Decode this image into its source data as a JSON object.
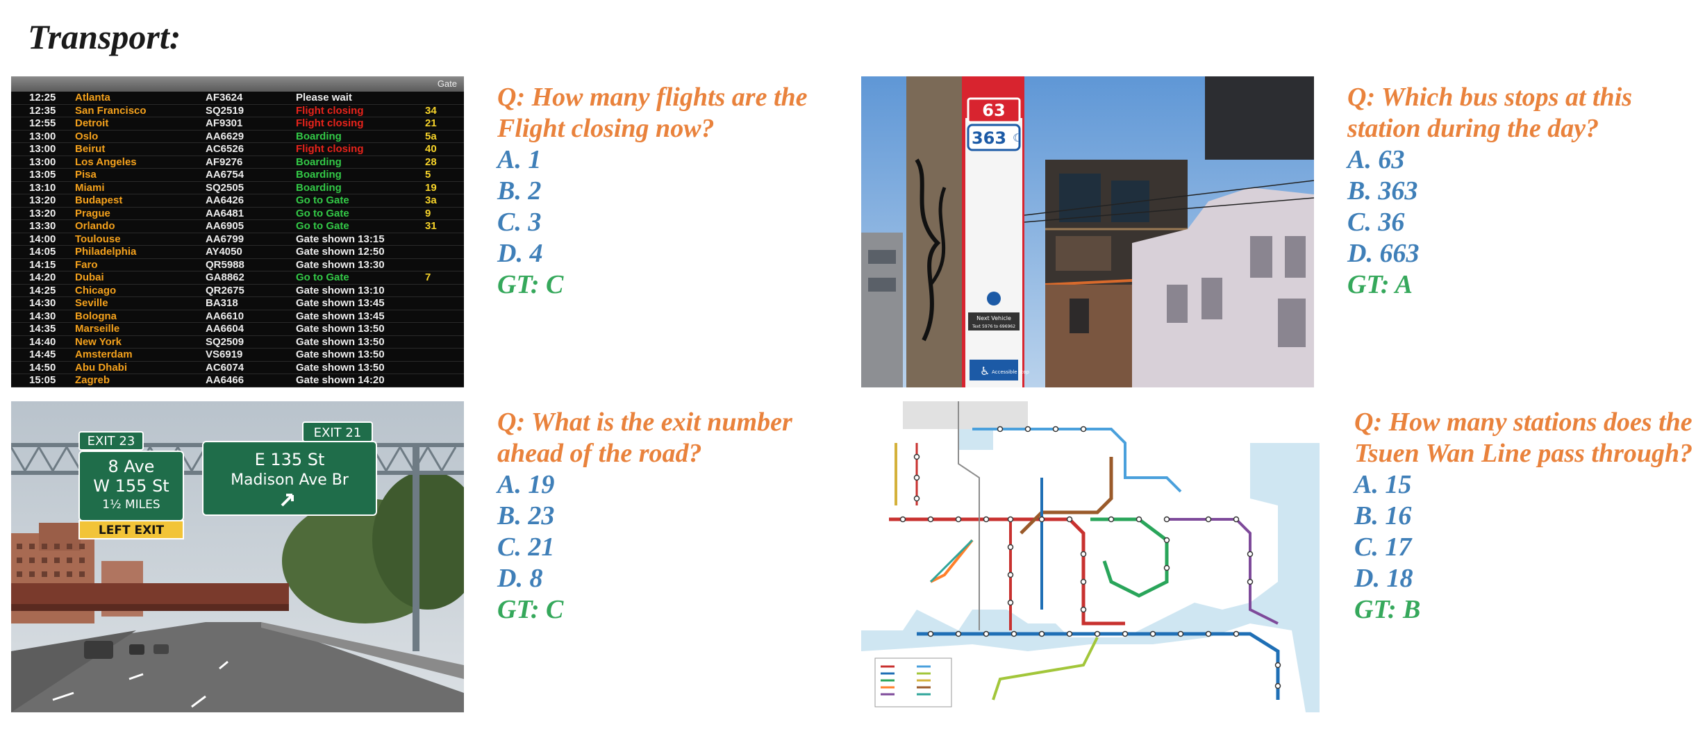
{
  "title": "Transport:",
  "panels": [
    {
      "question_line1": "Q: How many flights are the",
      "question_line2": "Flight closing now?",
      "options": [
        "A. 1",
        "B. 2",
        "C. 3",
        "D. 4"
      ],
      "gt": "GT: C",
      "image": {
        "header_gate": "Gate",
        "rows": [
          {
            "time": "12:25",
            "city": "Atlanta",
            "flight": "AF3624",
            "status": "Please wait",
            "gate": "",
            "status_color": "white"
          },
          {
            "time": "12:35",
            "city": "San Francisco",
            "flight": "SQ2519",
            "status": "Flight closing",
            "gate": "34",
            "status_color": "red"
          },
          {
            "time": "12:55",
            "city": "Detroit",
            "flight": "AF9301",
            "status": "Flight closing",
            "gate": "21",
            "status_color": "red"
          },
          {
            "time": "13:00",
            "city": "Oslo",
            "flight": "AA6629",
            "status": "Boarding",
            "gate": "5a",
            "status_color": "green"
          },
          {
            "time": "13:00",
            "city": "Beirut",
            "flight": "AC6526",
            "status": "Flight closing",
            "gate": "40",
            "status_color": "red"
          },
          {
            "time": "13:00",
            "city": "Los Angeles",
            "flight": "AF9276",
            "status": "Boarding",
            "gate": "28",
            "status_color": "green"
          },
          {
            "time": "13:05",
            "city": "Pisa",
            "flight": "AA6754",
            "status": "Boarding",
            "gate": "5",
            "status_color": "green"
          },
          {
            "time": "13:10",
            "city": "Miami",
            "flight": "SQ2505",
            "status": "Boarding",
            "gate": "19",
            "status_color": "green"
          },
          {
            "time": "13:20",
            "city": "Budapest",
            "flight": "AA6426",
            "status": "Go to Gate",
            "gate": "3a",
            "status_color": "green"
          },
          {
            "time": "13:20",
            "city": "Prague",
            "flight": "AA6481",
            "status": "Go to Gate",
            "gate": "9",
            "status_color": "green"
          },
          {
            "time": "13:30",
            "city": "Orlando",
            "flight": "AA6905",
            "status": "Go to Gate",
            "gate": "31",
            "status_color": "green"
          },
          {
            "time": "14:00",
            "city": "Toulouse",
            "flight": "AA6799",
            "status": "Gate shown 13:15",
            "gate": "",
            "status_color": "white"
          },
          {
            "time": "14:05",
            "city": "Philadelphia",
            "flight": "AY4050",
            "status": "Gate shown 12:50",
            "gate": "",
            "status_color": "white"
          },
          {
            "time": "14:15",
            "city": "Faro",
            "flight": "QR5988",
            "status": "Gate shown 13:30",
            "gate": "",
            "status_color": "white"
          },
          {
            "time": "14:20",
            "city": "Dubai",
            "flight": "GA8862",
            "status": "Go to Gate",
            "gate": "7",
            "status_color": "green"
          },
          {
            "time": "14:25",
            "city": "Chicago",
            "flight": "QR2675",
            "status": "Gate shown 13:10",
            "gate": "",
            "status_color": "white"
          },
          {
            "time": "14:30",
            "city": "Seville",
            "flight": "BA318",
            "status": "Gate shown 13:45",
            "gate": "",
            "status_color": "white"
          },
          {
            "time": "14:30",
            "city": "Bologna",
            "flight": "AA6610",
            "status": "Gate shown 13:45",
            "gate": "",
            "status_color": "white"
          },
          {
            "time": "14:35",
            "city": "Marseille",
            "flight": "AA6604",
            "status": "Gate shown 13:50",
            "gate": "",
            "status_color": "white"
          },
          {
            "time": "14:40",
            "city": "New York",
            "flight": "SQ2509",
            "status": "Gate shown 13:50",
            "gate": "",
            "status_color": "white"
          },
          {
            "time": "14:45",
            "city": "Amsterdam",
            "flight": "VS6919",
            "status": "Gate shown 13:50",
            "gate": "",
            "status_color": "white"
          },
          {
            "time": "14:50",
            "city": "Abu Dhabi",
            "flight": "AC6074",
            "status": "Gate shown 13:50",
            "gate": "",
            "status_color": "white"
          },
          {
            "time": "15:05",
            "city": "Zagreb",
            "flight": "AA6466",
            "status": "Gate shown 14:20",
            "gate": "",
            "status_color": "white"
          }
        ]
      }
    },
    {
      "question_line1": "Q: Which bus stops at this",
      "question_line2": "station during the day?",
      "options": [
        "A. 63",
        "B. 363",
        "C. 36",
        "D. 663"
      ],
      "gt": "GT: A",
      "image": {
        "route_day": "63",
        "route_night": "363",
        "next_vehicle": "Next Vehicle",
        "next_vehicle_sub": "Text 5976 to 696962",
        "accessible": "Accessible stop"
      }
    },
    {
      "question_line1": "Q: What is the exit number",
      "question_line2": "ahead of the road?",
      "options": [
        "A. 19",
        "B. 23",
        "C. 21",
        "D. 8"
      ],
      "gt": "GT: C",
      "image": {
        "exit_left_tab": "EXIT 23",
        "left_line1": "8 Ave",
        "left_line2": "W 155 St",
        "left_line3": "1½ MILES",
        "left_exit": "LEFT EXIT",
        "exit_right_tab": "EXIT 21",
        "right_line1": "E 135 St",
        "right_line2": "Madison Ave Br"
      }
    },
    {
      "question_line1": "Q: How many stations does the",
      "question_line2": "Tsuen Wan Line pass through?",
      "options": [
        "A. 15",
        "B. 16",
        "C. 17",
        "D. 18"
      ],
      "gt": "GT: B",
      "image": {}
    }
  ],
  "colors": {
    "question": "#e9823c",
    "option": "#3f7fb8",
    "gt": "#35a85b"
  }
}
